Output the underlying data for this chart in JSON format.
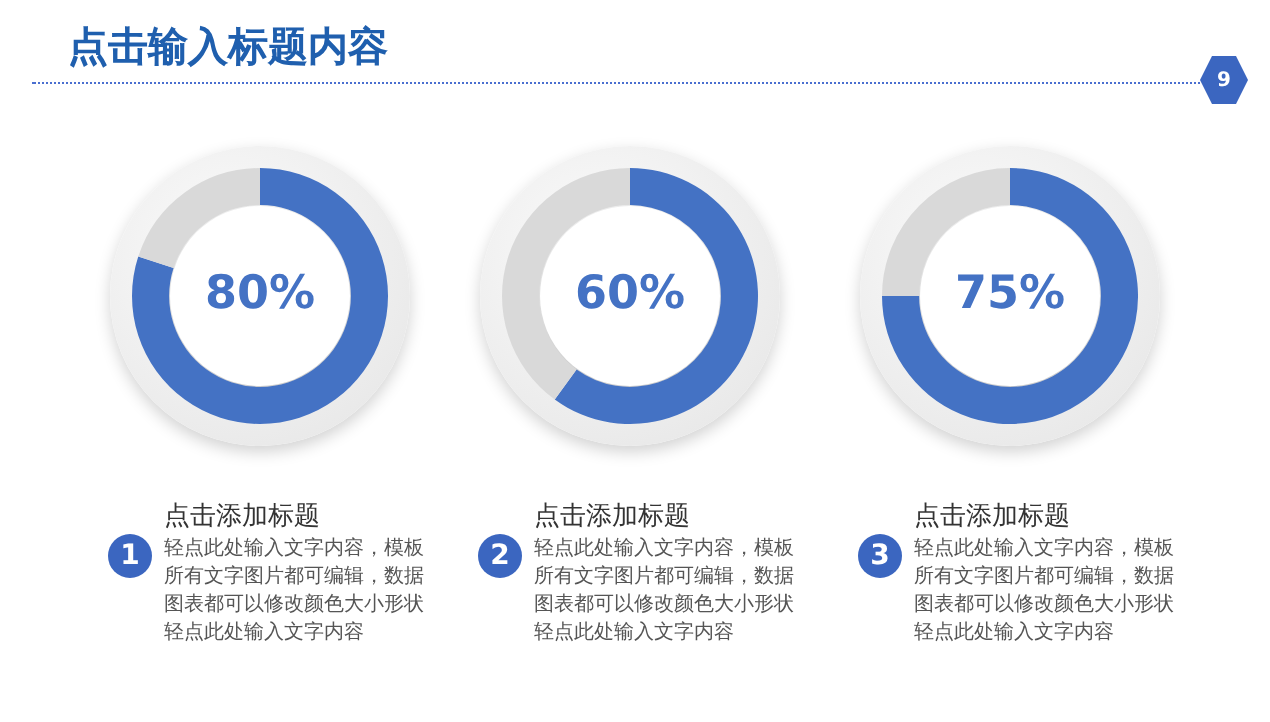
{
  "chart_data": [
    {
      "type": "donut",
      "title": "点击输入标题内容",
      "subtitle": "点击添加标题",
      "categories": [
        null,
        null
      ],
      "values": [
        80,
        20
      ],
      "colors": [
        "#4472c4",
        "#d9d9d9"
      ],
      "value_labels": [
        "80%",
        null
      ],
      "legend": false,
      "annotations": [
        "1",
        "轻点此处输入文字内容，模板所有文字图片都可编辑，数据图表都可以修改颜色大小形状轻点此处输入文字内容",
        "9"
      ]
    },
    {
      "type": "donut",
      "subtitle": "点击添加标题",
      "categories": [
        null,
        null
      ],
      "values": [
        60,
        40
      ],
      "colors": [
        "#4472c4",
        "#d9d9d9"
      ],
      "value_labels": [
        "60%",
        null
      ],
      "legend": false,
      "annotations": [
        "2",
        "轻点此处输入文字内容，模板所有文字图片都可编辑，数据图表都可以修改颜色大小形状轻点此处输入文字内容"
      ]
    },
    {
      "type": "donut",
      "subtitle": "点击添加标题",
      "categories": [
        null,
        null
      ],
      "values": [
        75,
        25
      ],
      "colors": [
        "#4472c4",
        "#d9d9d9"
      ],
      "value_labels": [
        "75%",
        null
      ],
      "legend": false,
      "annotations": [
        "3",
        "轻点此处输入文字内容，模板所有文字图片都可编辑，数据图表都可以修改颜色大小形状轻点此处输入文字内容"
      ]
    }
  ]
}
